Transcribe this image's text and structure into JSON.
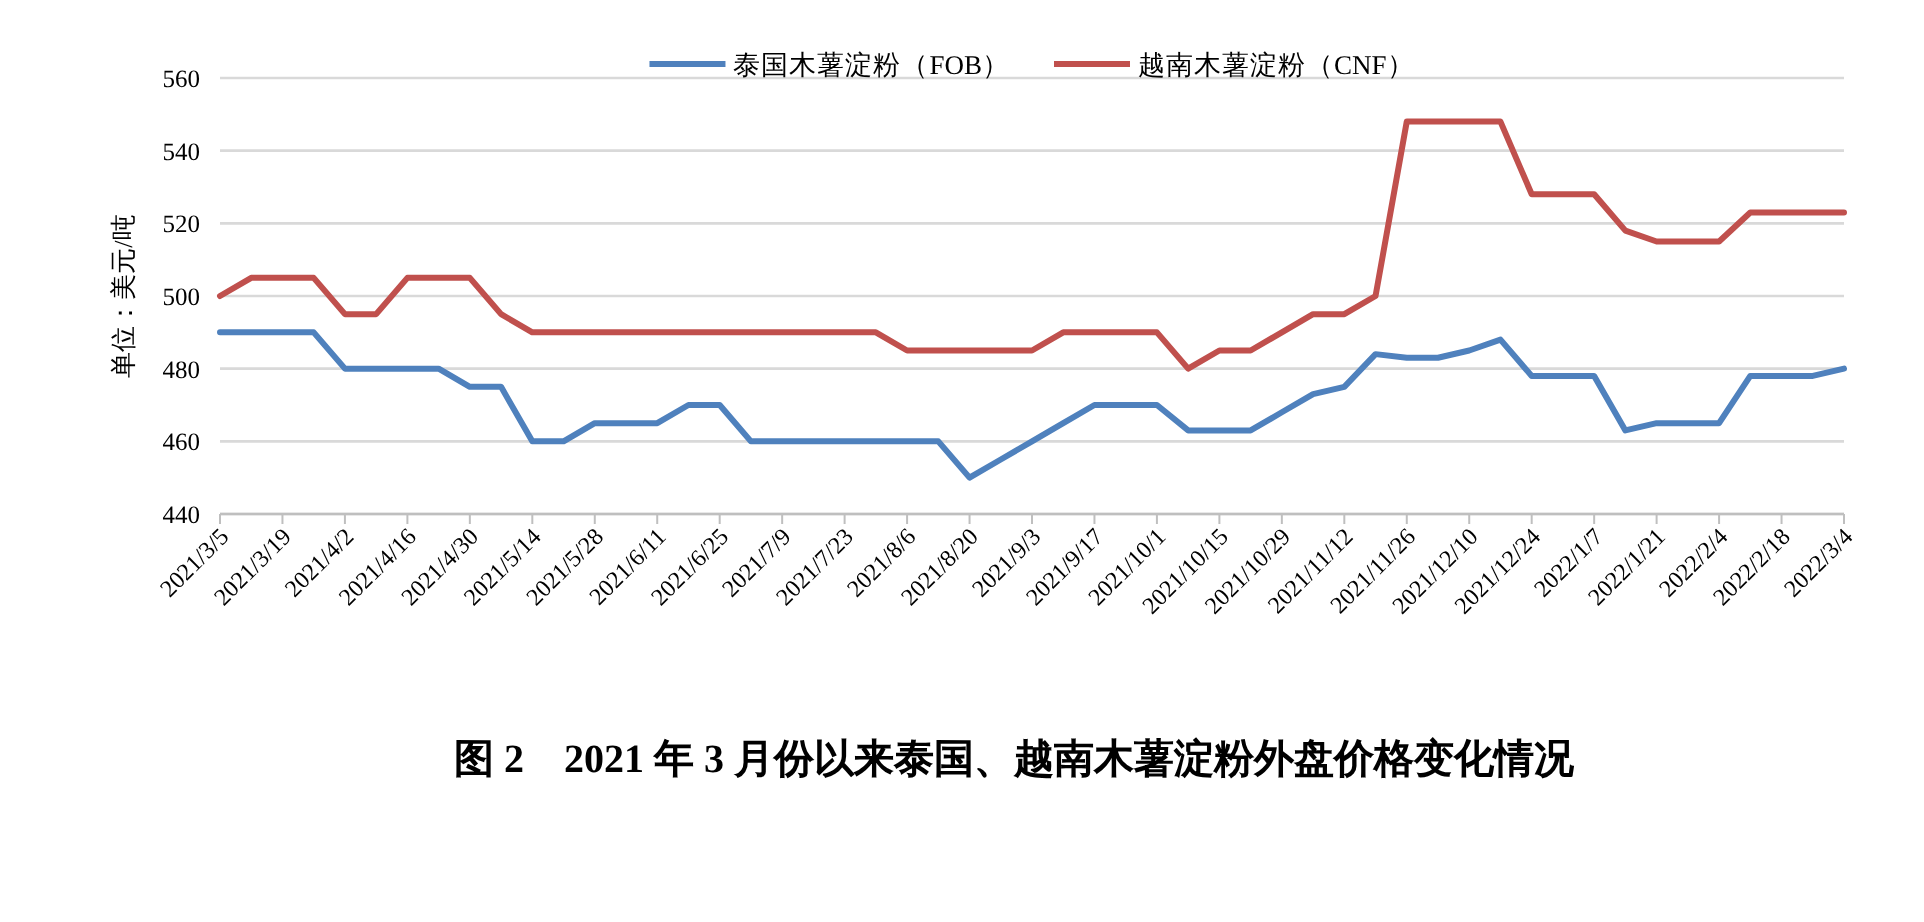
{
  "chart_data": {
    "type": "line",
    "title": "图 2　2021 年 3 月份以来泰国、越南木薯淀粉外盘价格变化情况",
    "ylabel": "单位：美元/吨",
    "categories": [
      "2021/3/5",
      null,
      "2021/3/19",
      null,
      "2021/4/2",
      null,
      "2021/4/16",
      null,
      "2021/4/30",
      null,
      "2021/5/14",
      null,
      "2021/5/28",
      null,
      "2021/6/11",
      null,
      "2021/6/25",
      null,
      "2021/7/9",
      null,
      "2021/7/23",
      null,
      "2021/8/6",
      null,
      "2021/8/20",
      null,
      "2021/9/3",
      null,
      "2021/9/17",
      null,
      "2021/10/1",
      null,
      "2021/10/15",
      null,
      "2021/10/29",
      null,
      "2021/11/12",
      null,
      "2021/11/26",
      null,
      "2021/12/10",
      null,
      "2021/12/24",
      null,
      "2022/1/7",
      null,
      "2022/1/21",
      null,
      "2022/2/4",
      null,
      "2022/2/18",
      null,
      "2022/3/4"
    ],
    "series": [
      {
        "name": "泰国木薯淀粉（FOB）",
        "color": "#4f81bd",
        "values": [
          490,
          490,
          490,
          490,
          480,
          480,
          480,
          480,
          475,
          475,
          460,
          460,
          465,
          465,
          465,
          470,
          470,
          460,
          460,
          460,
          460,
          460,
          460,
          460,
          450,
          455,
          460,
          465,
          470,
          470,
          470,
          463,
          463,
          463,
          468,
          473,
          475,
          484,
          483,
          483,
          485,
          488,
          478,
          478,
          478,
          463,
          465,
          465,
          465,
          478,
          478,
          478,
          480
        ]
      },
      {
        "name": "越南木薯淀粉（CNF）",
        "color": "#c0504d",
        "values": [
          500,
          505,
          505,
          505,
          495,
          495,
          505,
          505,
          505,
          495,
          490,
          490,
          490,
          490,
          490,
          490,
          490,
          490,
          490,
          490,
          490,
          490,
          485,
          485,
          485,
          485,
          485,
          490,
          490,
          490,
          490,
          480,
          485,
          485,
          490,
          495,
          495,
          500,
          548,
          548,
          548,
          548,
          528,
          528,
          528,
          518,
          515,
          515,
          515,
          523,
          523,
          523,
          523
        ]
      }
    ],
    "ylim": [
      440,
      560
    ],
    "yticks": [
      440,
      460,
      480,
      500,
      520,
      540,
      560
    ],
    "grid": "y",
    "legend": "top",
    "marker": "none",
    "line_style": "solid"
  }
}
